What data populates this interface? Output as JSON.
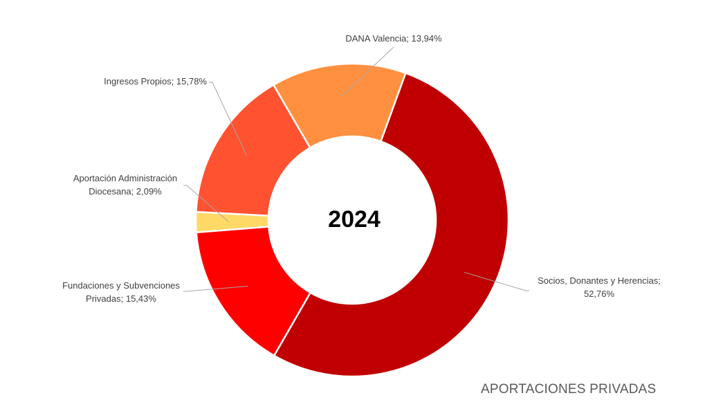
{
  "chart_data": {
    "type": "pie",
    "variant": "donut",
    "center_text": "2024",
    "title": "APORTACIONES PRIVADAS",
    "slices": [
      {
        "label": "Socios, Donantes y Herencias",
        "value": 52.76,
        "value_text": "52,76%",
        "color": "#c00000"
      },
      {
        "label": "Fundaciones y Subvenciones Privadas",
        "value": 15.43,
        "value_text": "15,43%",
        "color": "#ff0000"
      },
      {
        "label": "Aportación Administración Diocesana",
        "value": 2.09,
        "value_text": "2,09%",
        "color": "#ffd966"
      },
      {
        "label": "Ingresos Propios",
        "value": 15.78,
        "value_text": "15,78%",
        "color": "#ff5230"
      },
      {
        "label": "DANA Valencia",
        "value": 13.94,
        "value_text": "13,94%",
        "color": "#ff9040"
      }
    ],
    "legend": "none",
    "label_position": "outside-with-leader-lines"
  }
}
